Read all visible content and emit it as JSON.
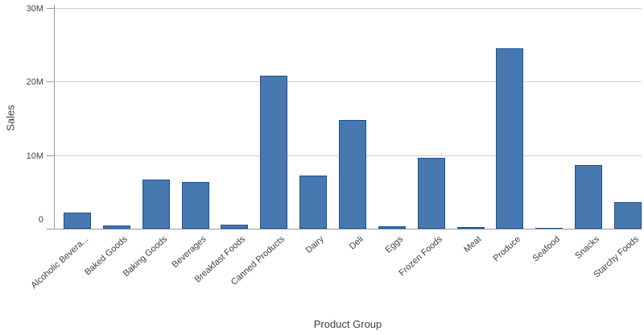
{
  "chart_data": {
    "type": "bar",
    "title": "",
    "xlabel": "Product Group",
    "ylabel": "Sales",
    "unit": "M",
    "ylim": [
      0,
      30
    ],
    "grid": true,
    "legend": false,
    "categories": [
      "Alcoholic Bevera...",
      "Baked Goods",
      "Baking Goods",
      "Beverages",
      "Breakfast Foods",
      "Canned Products",
      "Dairy",
      "Deli",
      "Eggs",
      "Frozen Foods",
      "Meat",
      "Produce",
      "Seafood",
      "Snacks",
      "Starchy Foods"
    ],
    "values": [
      2.2,
      0.4,
      6.7,
      6.4,
      0.6,
      20.8,
      7.2,
      14.8,
      0.3,
      9.6,
      0.2,
      24.5,
      0.1,
      8.7,
      3.6
    ],
    "yticks": [
      {
        "value": 0,
        "label": "0"
      },
      {
        "value": 10,
        "label": "10M"
      },
      {
        "value": 20,
        "label": "20M"
      },
      {
        "value": 30,
        "label": "30M"
      }
    ],
    "colors": {
      "bar_fill": "#4878b0",
      "bar_border": "#1a5191",
      "gridline": "#d0d0d0",
      "axis": "#9b9b9b",
      "text": "#414141"
    }
  }
}
